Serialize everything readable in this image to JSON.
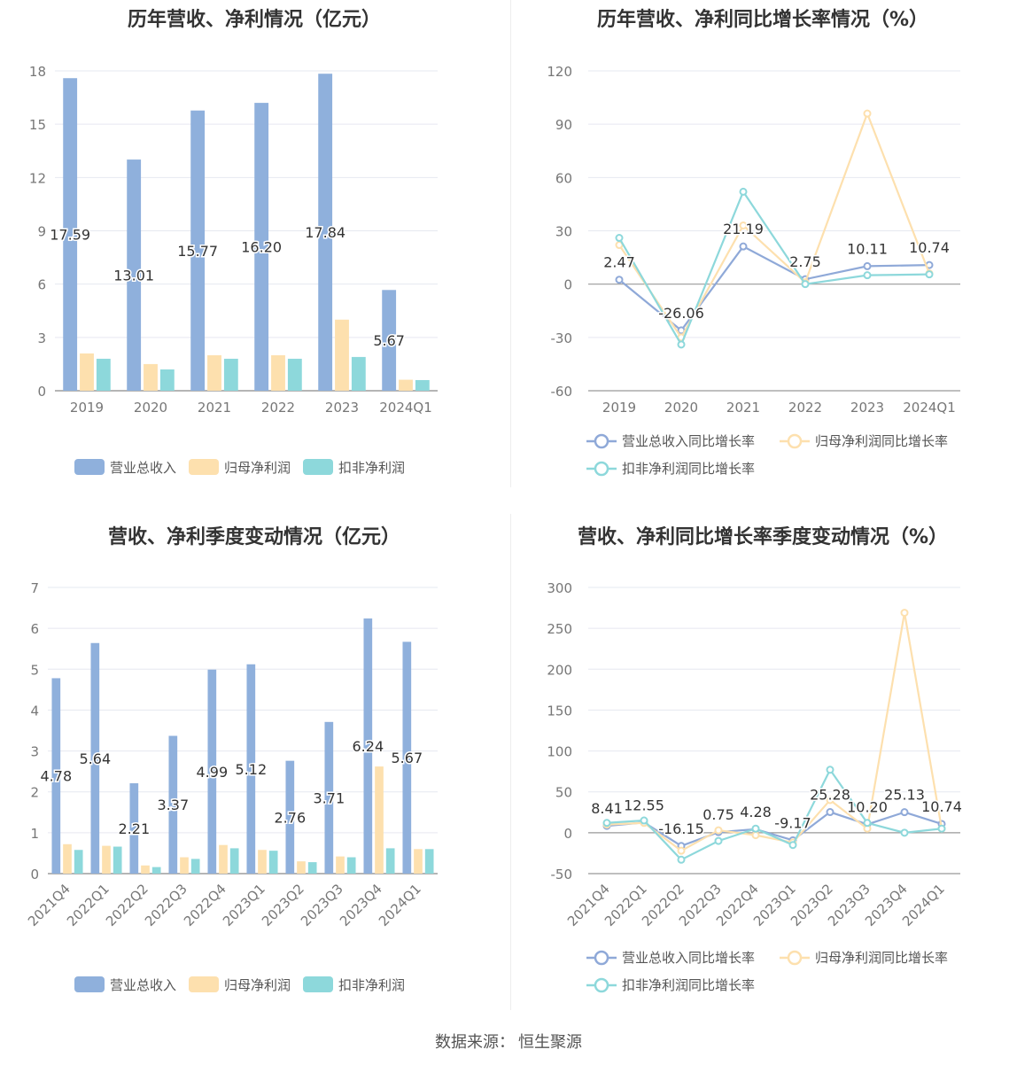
{
  "source": {
    "label": "数据来源：",
    "value": "恒生聚源"
  },
  "chart_data": [
    {
      "type": "bar",
      "title": "历年营收、净利情况（亿元）",
      "categories": [
        "2019",
        "2020",
        "2021",
        "2022",
        "2023",
        "2024Q1"
      ],
      "series": [
        {
          "name": "营业总收入",
          "values": [
            17.59,
            13.01,
            15.77,
            16.2,
            17.84,
            5.67
          ],
          "color": "#8fb0dc",
          "labels": [
            "17.59",
            "13.01",
            "15.77",
            "16.20",
            "17.84",
            "5.67"
          ]
        },
        {
          "name": "归母净利润",
          "values": [
            2.1,
            1.5,
            2.0,
            2.0,
            4.0,
            0.62
          ],
          "color": "#fde0ae"
        },
        {
          "name": "扣非净利润",
          "values": [
            1.8,
            1.2,
            1.8,
            1.8,
            1.9,
            0.6
          ],
          "color": "#8dd8db"
        }
      ],
      "ylim": [
        0,
        18
      ],
      "yticks": [
        "0",
        "3",
        "6",
        "9",
        "12",
        "15",
        "18"
      ],
      "grid": true,
      "legend": "bottom"
    },
    {
      "type": "line",
      "title": "历年营收、净利同比增长率情况（%）",
      "categories": [
        "2019",
        "2020",
        "2021",
        "2022",
        "2023",
        "2024Q1"
      ],
      "series": [
        {
          "name": "营业总收入同比增长率",
          "values": [
            2.47,
            -26.06,
            21.19,
            2.75,
            10.11,
            10.74
          ],
          "color": "#8fa9d8",
          "labels": [
            "2.47",
            "-26.06",
            "21.19",
            "2.75",
            "10.11",
            "10.74"
          ]
        },
        {
          "name": "归母净利润同比增长率",
          "values": [
            22,
            -30,
            33,
            1,
            96,
            6
          ],
          "color": "#fde0ae"
        },
        {
          "name": "扣非净利润同比增长率",
          "values": [
            26,
            -34,
            52,
            0,
            5,
            5.5
          ],
          "color": "#8dd8db"
        }
      ],
      "ylim": [
        -60,
        120
      ],
      "yticks": [
        "-60",
        "-30",
        "0",
        "30",
        "60",
        "90",
        "120"
      ],
      "grid": true,
      "legend": "bottom"
    },
    {
      "type": "bar",
      "title": "营收、净利季度变动情况（亿元）",
      "categories": [
        "2021Q4",
        "2022Q1",
        "2022Q2",
        "2022Q3",
        "2022Q4",
        "2023Q1",
        "2023Q2",
        "2023Q3",
        "2023Q4",
        "2024Q1"
      ],
      "series": [
        {
          "name": "营业总收入",
          "values": [
            4.78,
            5.64,
            2.21,
            3.37,
            4.99,
            5.12,
            2.76,
            3.71,
            6.24,
            5.67
          ],
          "color": "#8fb0dc",
          "labels": [
            "4.78",
            "5.64",
            "2.21",
            "3.37",
            "4.99",
            "5.12",
            "2.76",
            "3.71",
            "6.24",
            "5.67"
          ]
        },
        {
          "name": "归母净利润",
          "values": [
            0.72,
            0.68,
            0.2,
            0.4,
            0.7,
            0.58,
            0.3,
            0.42,
            2.62,
            0.6
          ],
          "color": "#fde0ae"
        },
        {
          "name": "扣非净利润",
          "values": [
            0.58,
            0.66,
            0.16,
            0.36,
            0.62,
            0.56,
            0.28,
            0.4,
            0.62,
            0.6
          ],
          "color": "#8dd8db"
        }
      ],
      "ylim": [
        0,
        7
      ],
      "yticks": [
        "0",
        "1",
        "2",
        "3",
        "4",
        "5",
        "6",
        "7"
      ],
      "grid": true,
      "legend": "bottom"
    },
    {
      "type": "line",
      "title": "营收、净利同比增长率季度变动情况（%）",
      "categories": [
        "2021Q4",
        "2022Q1",
        "2022Q2",
        "2022Q3",
        "2022Q4",
        "2023Q1",
        "2023Q2",
        "2023Q3",
        "2023Q4",
        "2024Q1"
      ],
      "series": [
        {
          "name": "营业总收入同比增长率",
          "values": [
            8.41,
            12.55,
            -16.15,
            0.75,
            4.28,
            -9.17,
            25.28,
            10.2,
            25.13,
            10.74
          ],
          "color": "#8fa9d8",
          "labels": [
            "8.41",
            "12.55",
            "-16.15",
            "0.75",
            "4.28",
            "-9.17",
            "25.28",
            "10.20",
            "25.13",
            "10.74"
          ]
        },
        {
          "name": "归母净利润同比增长率",
          "values": [
            10,
            12,
            -22,
            3,
            -3,
            -12,
            40,
            5,
            269,
            5
          ],
          "color": "#fde0ae"
        },
        {
          "name": "扣非净利润同比增长率",
          "values": [
            12,
            15,
            -33,
            -10,
            5,
            -15,
            77,
            12,
            0,
            5
          ],
          "color": "#8dd8db"
        }
      ],
      "ylim": [
        -50,
        300
      ],
      "yticks": [
        "-50",
        "0",
        "50",
        "100",
        "150",
        "200",
        "250",
        "300"
      ],
      "grid": true,
      "legend": "bottom"
    }
  ]
}
